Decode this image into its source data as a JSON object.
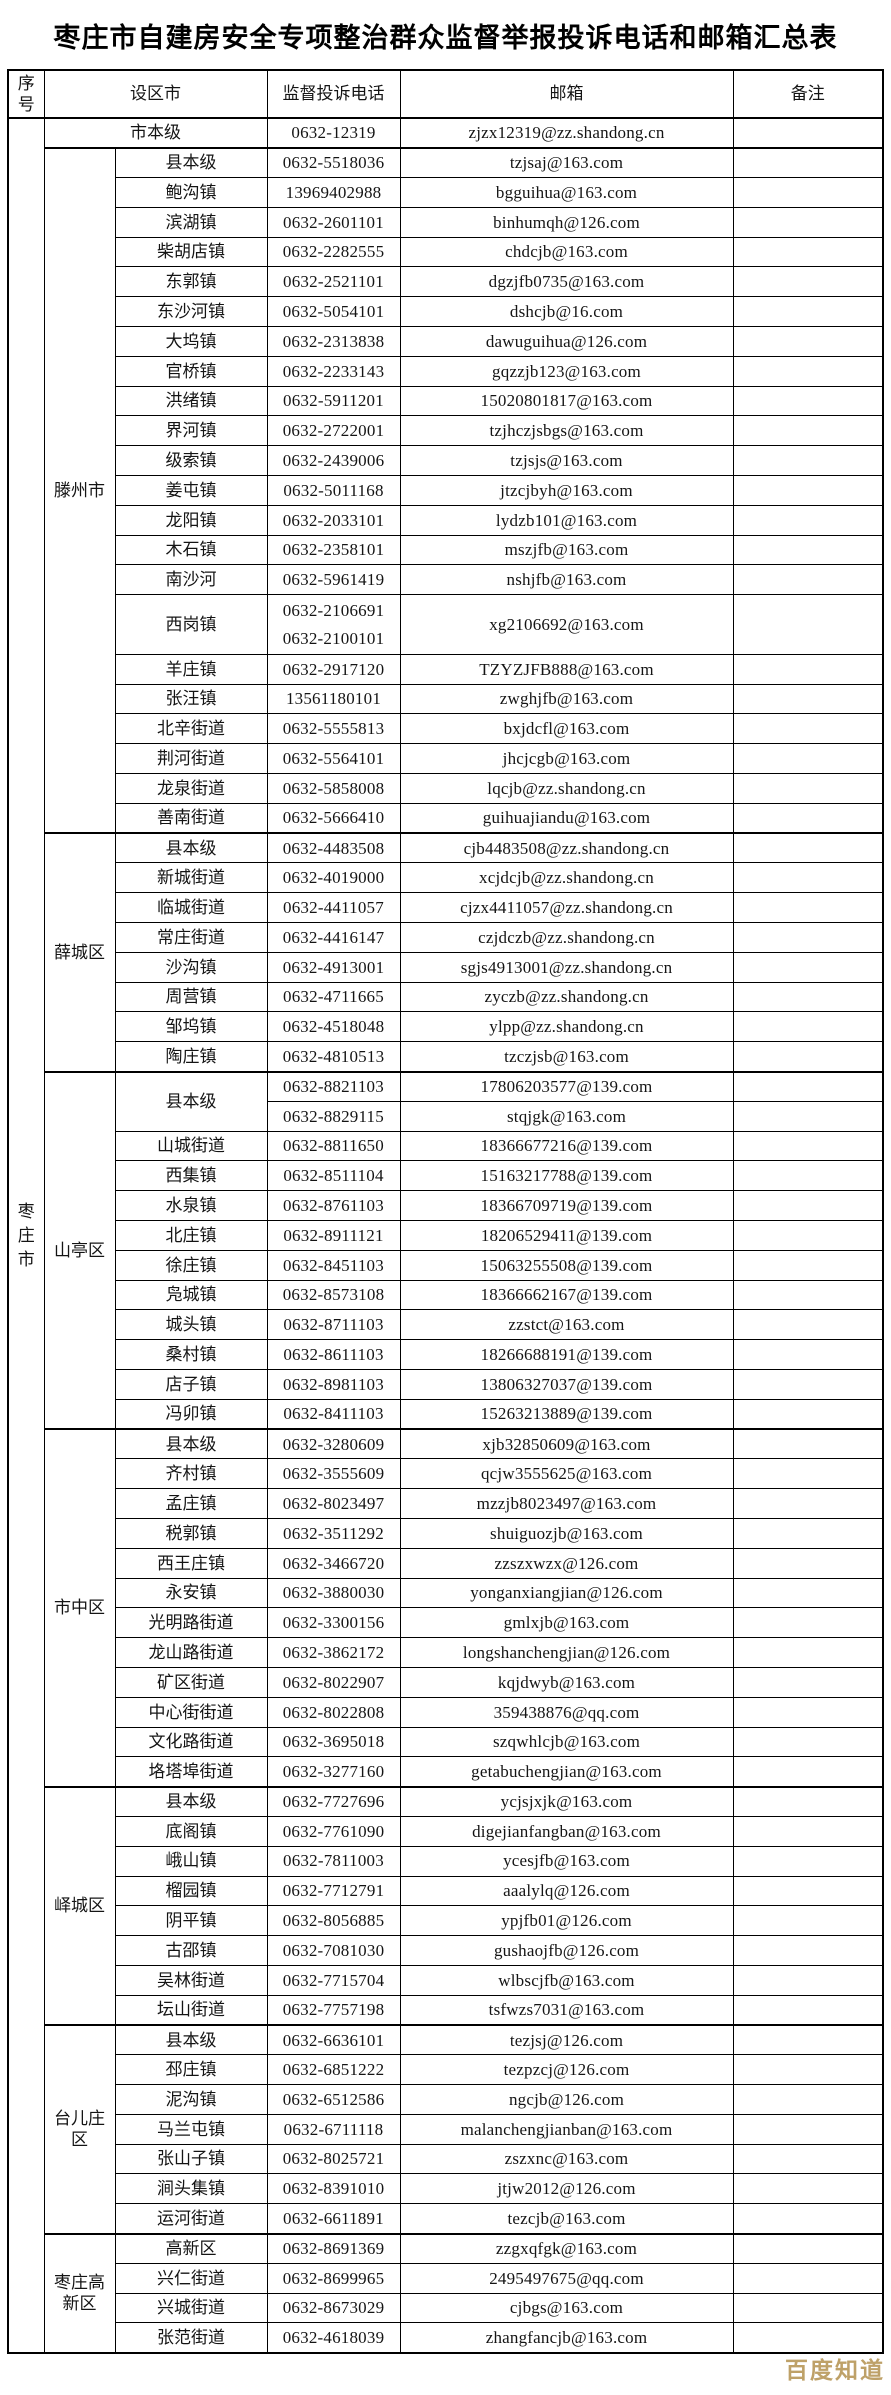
{
  "title": "枣庄市自建房安全专项整治群众监督举报投诉电话和邮箱汇总表",
  "watermark": "百度知道",
  "header": {
    "serial": "序号",
    "city": "设区市",
    "phone": "监督投诉电话",
    "email": "邮箱",
    "remark": "备注"
  },
  "serial_label": "枣庄市",
  "city_level_row": {
    "name": "市本级",
    "phone": "0632-12319",
    "email": "zjzx12319@zz.shandong.cn",
    "remark": ""
  },
  "sections": [
    {
      "name": "滕州市",
      "rows": [
        {
          "town": "县本级",
          "phone": "0632-5518036",
          "email": "tzjsaj@163.com",
          "remark": ""
        },
        {
          "town": "鲍沟镇",
          "phone": "13969402988",
          "email": "bgguihua@163.com",
          "remark": ""
        },
        {
          "town": "滨湖镇",
          "phone": "0632-2601101",
          "email": "binhumqh@126.com",
          "remark": ""
        },
        {
          "town": "柴胡店镇",
          "phone": "0632-2282555",
          "email": "chdcjb@163.com",
          "remark": ""
        },
        {
          "town": "东郭镇",
          "phone": "0632-2521101",
          "email": "dgzjfb0735@163.com",
          "remark": ""
        },
        {
          "town": "东沙河镇",
          "phone": "0632-5054101",
          "email": "dshcjb@16.com",
          "remark": ""
        },
        {
          "town": "大坞镇",
          "phone": "0632-2313838",
          "email": "dawuguihua@126.com",
          "remark": ""
        },
        {
          "town": "官桥镇",
          "phone": "0632-2233143",
          "email": "gqzzjb123@163.com",
          "remark": ""
        },
        {
          "town": "洪绪镇",
          "phone": "0632-5911201",
          "email": "15020801817@163.com",
          "remark": ""
        },
        {
          "town": "界河镇",
          "phone": "0632-2722001",
          "email": "tzjhczjsbgs@163.com",
          "remark": ""
        },
        {
          "town": "级索镇",
          "phone": "0632-2439006",
          "email": "tzjsjs@163.com",
          "remark": ""
        },
        {
          "town": "姜屯镇",
          "phone": "0632-5011168",
          "email": "jtzcjbyh@163.com",
          "remark": ""
        },
        {
          "town": "龙阳镇",
          "phone": "0632-2033101",
          "email": "lydzb101@163.com",
          "remark": ""
        },
        {
          "town": "木石镇",
          "phone": "0632-2358101",
          "email": "mszjfb@163.com",
          "remark": ""
        },
        {
          "town": "南沙河",
          "phone": "0632-5961419",
          "email": "nshjfb@163.com",
          "remark": ""
        },
        {
          "town": "西岗镇",
          "phones": [
            "0632-2106691",
            "0632-2100101"
          ],
          "email": "xg2106692@163.com",
          "remark": "",
          "tall": true
        },
        {
          "town": "羊庄镇",
          "phone": "0632-2917120",
          "email": "TZYZJFB888@163.com",
          "remark": ""
        },
        {
          "town": "张汪镇",
          "phone": "13561180101",
          "email": "zwghjfb@163.com",
          "remark": ""
        },
        {
          "town": "北辛街道",
          "phone": "0632-5555813",
          "email": "bxjdcfl@163.com",
          "remark": ""
        },
        {
          "town": "荆河街道",
          "phone": "0632-5564101",
          "email": "jhcjcgb@163.com",
          "remark": ""
        },
        {
          "town": "龙泉街道",
          "phone": "0632-5858008",
          "email": "lqcjb@zz.shandong.cn",
          "remark": ""
        },
        {
          "town": "善南街道",
          "phone": "0632-5666410",
          "email": "guihuajiandu@163.com",
          "remark": ""
        }
      ]
    },
    {
      "name": "薛城区",
      "rows": [
        {
          "town": "县本级",
          "phone": "0632-4483508",
          "email": "cjb4483508@zz.shandong.cn",
          "remark": ""
        },
        {
          "town": "新城街道",
          "phone": "0632-4019000",
          "email": "xcjdcjb@zz.shandong.cn",
          "remark": ""
        },
        {
          "town": "临城街道",
          "phone": "0632-4411057",
          "email": "cjzx4411057@zz.shandong.cn",
          "remark": ""
        },
        {
          "town": "常庄街道",
          "phone": "0632-4416147",
          "email": "czjdczb@zz.shandong.cn",
          "remark": ""
        },
        {
          "town": "沙沟镇",
          "phone": "0632-4913001",
          "email": "sgjs4913001@zz.shandong.cn",
          "remark": ""
        },
        {
          "town": "周营镇",
          "phone": "0632-4711665",
          "email": "zyczb@zz.shandong.cn",
          "remark": ""
        },
        {
          "town": "邹坞镇",
          "phone": "0632-4518048",
          "email": "ylpp@zz.shandong.cn",
          "remark": ""
        },
        {
          "town": "陶庄镇",
          "phone": "0632-4810513",
          "email": "tzczjsb@163.com",
          "remark": ""
        }
      ]
    },
    {
      "name": "山亭区",
      "rows": [
        {
          "town": "县本级",
          "entries": [
            {
              "phone": "0632-8821103",
              "email": "17806203577@139.com",
              "remark": ""
            },
            {
              "phone": "0632-8829115",
              "email": "stqjgk@163.com",
              "remark": ""
            }
          ]
        },
        {
          "town": "山城街道",
          "phone": "0632-8811650",
          "email": "18366677216@139.com",
          "remark": ""
        },
        {
          "town": "西集镇",
          "phone": "0632-8511104",
          "email": "15163217788@139.com",
          "remark": ""
        },
        {
          "town": "水泉镇",
          "phone": "0632-8761103",
          "email": "18366709719@139.com",
          "remark": ""
        },
        {
          "town": "北庄镇",
          "phone": "0632-8911121",
          "email": "18206529411@139.com",
          "remark": ""
        },
        {
          "town": "徐庄镇",
          "phone": "0632-8451103",
          "email": "15063255508@139.com",
          "remark": ""
        },
        {
          "town": "凫城镇",
          "phone": "0632-8573108",
          "email": "18366662167@139.com",
          "remark": ""
        },
        {
          "town": "城头镇",
          "phone": "0632-8711103",
          "email": "zzstct@163.com",
          "remark": ""
        },
        {
          "town": "桑村镇",
          "phone": "0632-8611103",
          "email": "18266688191@139.com",
          "remark": ""
        },
        {
          "town": "店子镇",
          "phone": "0632-8981103",
          "email": "13806327037@139.com",
          "remark": ""
        },
        {
          "town": "冯卯镇",
          "phone": "0632-8411103",
          "email": "15263213889@139.com",
          "remark": ""
        }
      ]
    },
    {
      "name": "市中区",
      "rows": [
        {
          "town": "县本级",
          "phone": "0632-3280609",
          "email": "xjb32850609@163.com",
          "remark": ""
        },
        {
          "town": "齐村镇",
          "phone": "0632-3555609",
          "email": "qcjw3555625@163.com",
          "remark": ""
        },
        {
          "town": "孟庄镇",
          "phone": "0632-8023497",
          "email": "mzzjb8023497@163.com",
          "remark": ""
        },
        {
          "town": "税郭镇",
          "phone": "0632-3511292",
          "email": "shuiguozjb@163.com",
          "remark": ""
        },
        {
          "town": "西王庄镇",
          "phone": "0632-3466720",
          "email": "zzszxwzx@126.com",
          "remark": ""
        },
        {
          "town": "永安镇",
          "phone": "0632-3880030",
          "email": "yonganxiangjian@126.com",
          "remark": ""
        },
        {
          "town": "光明路街道",
          "phone": "0632-3300156",
          "email": "gmlxjb@163.com",
          "remark": ""
        },
        {
          "town": "龙山路街道",
          "phone": "0632-3862172",
          "email": "longshanchengjian@126.com",
          "remark": ""
        },
        {
          "town": "矿区街道",
          "phone": "0632-8022907",
          "email": "kqjdwyb@163.com",
          "remark": ""
        },
        {
          "town": "中心街街道",
          "phone": "0632-8022808",
          "email": "359438876@qq.com",
          "remark": ""
        },
        {
          "town": "文化路街道",
          "phone": "0632-3695018",
          "email": "szqwhlcjb@163.com",
          "remark": ""
        },
        {
          "town": "垎塔埠街道",
          "phone": "0632-3277160",
          "email": "getabuchengjian@163.com",
          "remark": ""
        }
      ]
    },
    {
      "name": "峄城区",
      "rows": [
        {
          "town": "县本级",
          "phone": "0632-7727696",
          "email": "ycjsjxjk@163.com",
          "remark": ""
        },
        {
          "town": "底阁镇",
          "phone": "0632-7761090",
          "email": "digejianfangban@163.com",
          "remark": ""
        },
        {
          "town": "峨山镇",
          "phone": "0632-7811003",
          "email": "ycesjfb@163.com",
          "remark": ""
        },
        {
          "town": "榴园镇",
          "phone": "0632-7712791",
          "email": "aaalylq@126.com",
          "remark": ""
        },
        {
          "town": "阴平镇",
          "phone": "0632-8056885",
          "email": "ypjfb01@126.com",
          "remark": ""
        },
        {
          "town": "古邵镇",
          "phone": "0632-7081030",
          "email": "gushaojfb@126.com",
          "remark": ""
        },
        {
          "town": "吴林街道",
          "phone": "0632-7715704",
          "email": "wlbscjfb@163.com",
          "remark": ""
        },
        {
          "town": "坛山街道",
          "phone": "0632-7757198",
          "email": "tsfwzs7031@163.com",
          "remark": ""
        }
      ]
    },
    {
      "name": "台儿庄区",
      "rows": [
        {
          "town": "县本级",
          "phone": "0632-6636101",
          "email": "tezjsj@126.com",
          "remark": ""
        },
        {
          "town": "邳庄镇",
          "phone": "0632-6851222",
          "email": "tezpzcj@126.com",
          "remark": ""
        },
        {
          "town": "泥沟镇",
          "phone": "0632-6512586",
          "email": "ngcjb@126.com",
          "remark": ""
        },
        {
          "town": "马兰屯镇",
          "phone": "0632-6711118",
          "email": "malanchengjianban@163.com",
          "remark": ""
        },
        {
          "town": "张山子镇",
          "phone": "0632-8025721",
          "email": "zszxnc@163.com",
          "remark": ""
        },
        {
          "town": "涧头集镇",
          "phone": "0632-8391010",
          "email": "jtjw2012@126.com",
          "remark": ""
        },
        {
          "town": "运河街道",
          "phone": "0632-6611891",
          "email": "tezcjb@163.com",
          "remark": ""
        }
      ]
    },
    {
      "name": "枣庄高新区",
      "rows": [
        {
          "town": "高新区",
          "phone": "0632-8691369",
          "email": "zzgxqfgk@163.com",
          "remark": ""
        },
        {
          "town": "兴仁街道",
          "phone": "0632-8699965",
          "email": "2495497675@qq.com",
          "remark": ""
        },
        {
          "town": "兴城街道",
          "phone": "0632-8673029",
          "email": "cjbgs@163.com",
          "remark": ""
        },
        {
          "town": "张范街道",
          "phone": "0632-4618039",
          "email": "zhangfancjb@163.com",
          "remark": ""
        }
      ]
    }
  ]
}
